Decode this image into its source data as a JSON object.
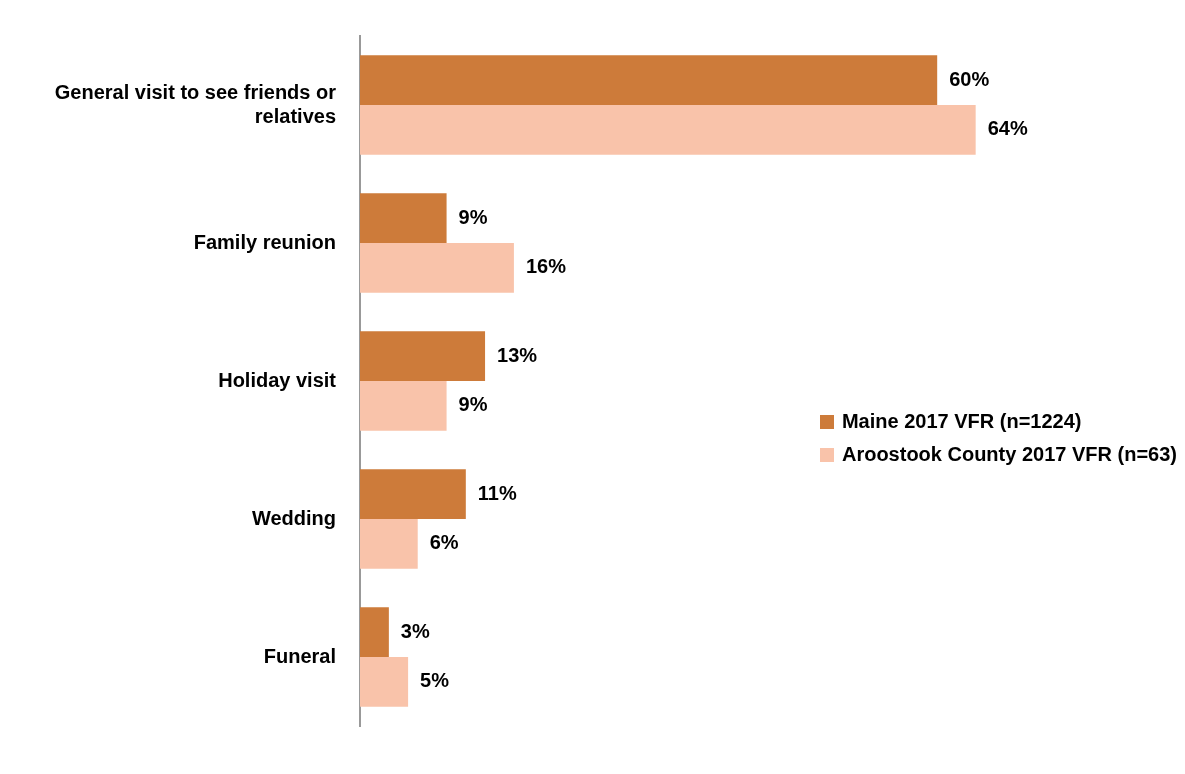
{
  "chart_data": {
    "type": "bar",
    "orientation": "horizontal",
    "legend": "right",
    "categories": [
      "General visit to see friends or relatives",
      "Family reunion",
      "Holiday visit",
      "Wedding",
      "Funeral"
    ],
    "series": [
      {
        "name": "Maine 2017 VFR (n=1224)",
        "color": "#cd7b3a",
        "values": [
          60,
          9,
          13,
          11,
          3
        ],
        "value_labels": [
          "60%",
          "9%",
          "13%",
          "11%",
          "3%"
        ]
      },
      {
        "name": "Aroostook County 2017 VFR (n=63)",
        "color": "#f9c3aa",
        "values": [
          64,
          16,
          9,
          6,
          5
        ],
        "value_labels": [
          "64%",
          "16%",
          "9%",
          "6%",
          "5%"
        ]
      }
    ]
  }
}
